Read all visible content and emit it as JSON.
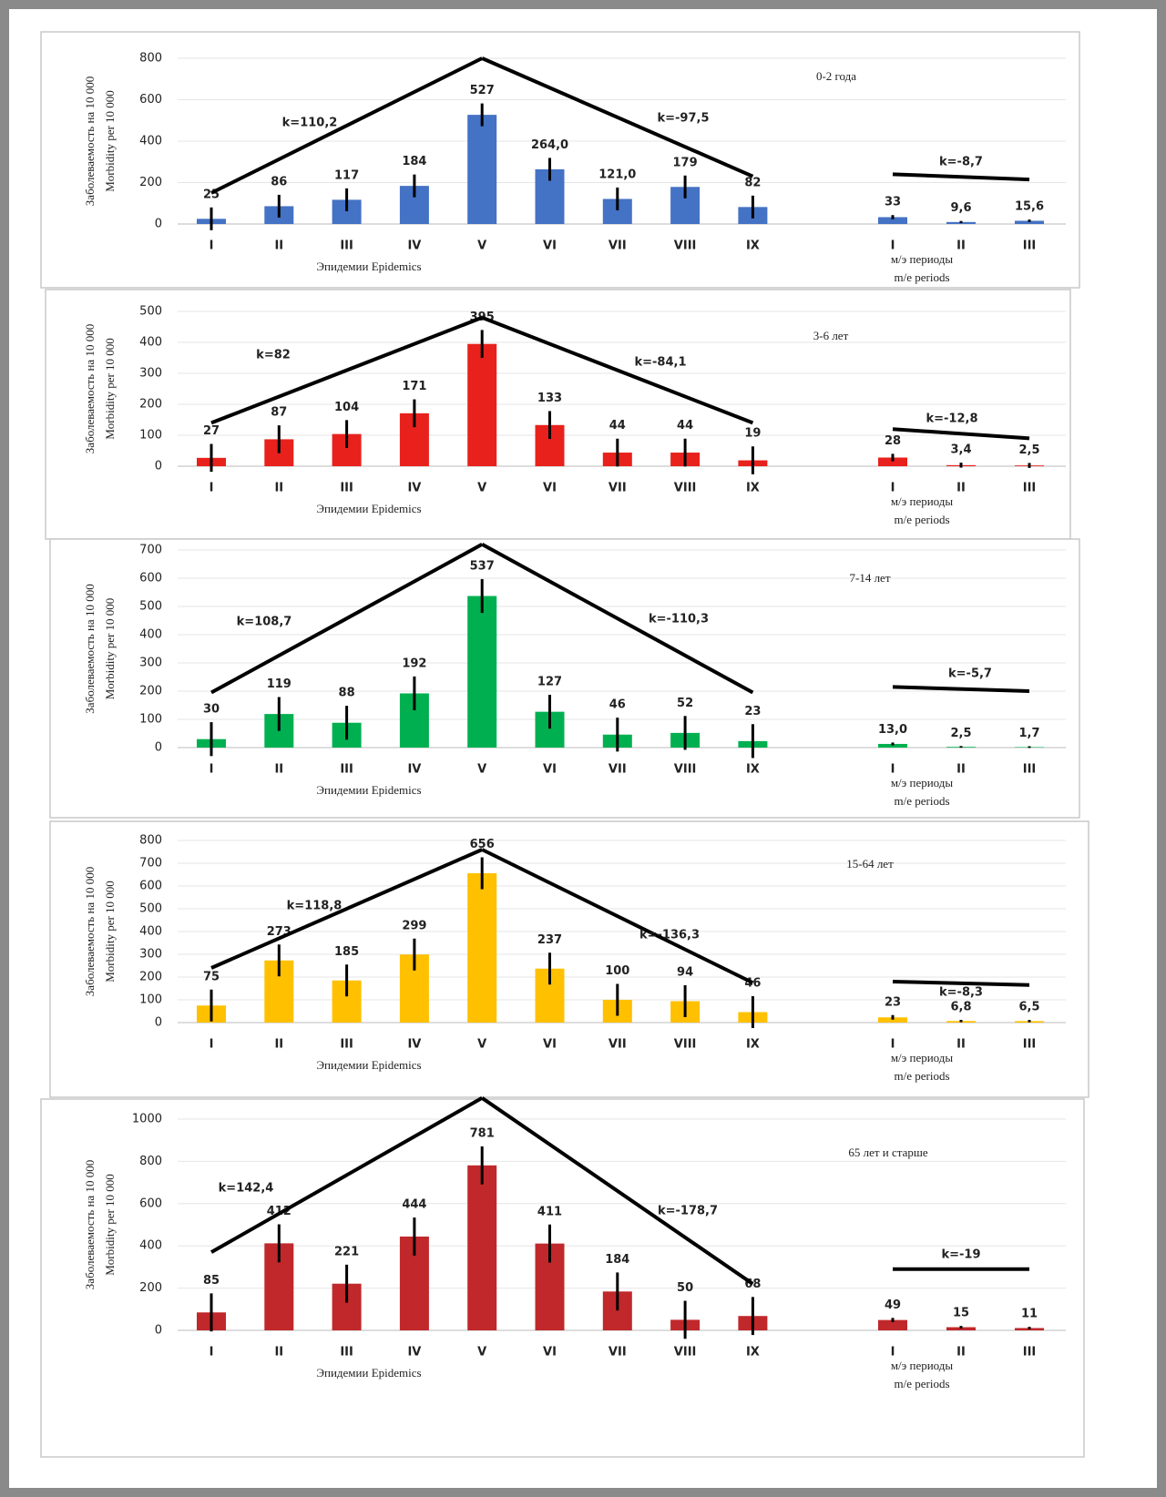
{
  "chart_data": [
    {
      "type": "bar",
      "title": "0-2 года",
      "ylabel": [
        "Заболеваемость на 10 000",
        "Morbidity per 10 000"
      ],
      "xlabel": "Эпидемии Epidemics",
      "categories": [
        "I",
        "II",
        "III",
        "IV",
        "V",
        "VI",
        "VII",
        "VIII",
        "IX"
      ],
      "values": [
        25,
        86,
        117,
        184,
        527,
        264.0,
        121.0,
        179,
        82
      ],
      "value_labels": [
        "25",
        "86",
        "117",
        "184",
        "527",
        "264,0",
        "121,0",
        "179",
        "82"
      ],
      "errors": [
        55,
        55,
        55,
        55,
        55,
        55,
        55,
        55,
        55
      ],
      "color": "#4472c4",
      "ylim": [
        0,
        800
      ],
      "yticks": [
        0,
        200,
        400,
        600,
        800
      ],
      "grid": true,
      "trends": [
        {
          "label": "k=110,2",
          "x": [
            "I",
            "V"
          ],
          "y": [
            150,
            800
          ]
        },
        {
          "label": "k=-97,5",
          "x": [
            "V",
            "IX"
          ],
          "y": [
            800,
            230
          ]
        }
      ],
      "periods": {
        "xlabel": [
          "м/э периоды",
          "m/e periods"
        ],
        "categories": [
          "I",
          "II",
          "III"
        ],
        "values": [
          33,
          9.6,
          15.6
        ],
        "value_labels": [
          "33",
          "9,6",
          "15,6"
        ],
        "errors": [
          10,
          5,
          6
        ],
        "trend": {
          "label": "k=-8,7",
          "x": [
            "I",
            "III"
          ],
          "y": [
            240,
            215
          ]
        }
      }
    },
    {
      "type": "bar",
      "title": "3-6 лет",
      "ylabel": [
        "Заболеваемость на 10 000",
        "Morbidity per 10 000"
      ],
      "xlabel": "Эпидемии Epidemics",
      "categories": [
        "I",
        "II",
        "III",
        "IV",
        "V",
        "VI",
        "VII",
        "VIII",
        "IX"
      ],
      "values": [
        27,
        87,
        104,
        171,
        395,
        133,
        44,
        44,
        19
      ],
      "value_labels": [
        "27",
        "87",
        "104",
        "171",
        "395",
        "133",
        "44",
        "44",
        "19"
      ],
      "errors": [
        45,
        45,
        45,
        45,
        45,
        45,
        45,
        45,
        45
      ],
      "color": "#e8211c",
      "ylim": [
        0,
        500
      ],
      "yticks": [
        0,
        100,
        200,
        300,
        400,
        500
      ],
      "grid": true,
      "trends": [
        {
          "label": "k=82",
          "x": [
            "I",
            "V"
          ],
          "y": [
            140,
            480
          ]
        },
        {
          "label": "k=-84,1",
          "x": [
            "V",
            "IX"
          ],
          "y": [
            480,
            140
          ]
        }
      ],
      "periods": {
        "xlabel": [
          "м/э периоды",
          "m/e periods"
        ],
        "categories": [
          "I",
          "II",
          "III"
        ],
        "values": [
          28,
          3.4,
          2.5
        ],
        "value_labels": [
          "28",
          "3,4",
          "2,5"
        ],
        "errors": [
          12,
          8,
          8
        ],
        "trend": {
          "label": "k=-12,8",
          "x": [
            "I",
            "III"
          ],
          "y": [
            120,
            90
          ]
        }
      }
    },
    {
      "type": "bar",
      "title": "7-14 лет",
      "ylabel": [
        "Заболеваемость на 10 000",
        "Morbidity per 10 000"
      ],
      "xlabel": "Эпидемии Epidemics",
      "categories": [
        "I",
        "II",
        "III",
        "IV",
        "V",
        "VI",
        "VII",
        "VIII",
        "IX"
      ],
      "values": [
        30,
        119,
        88,
        192,
        537,
        127,
        46,
        52,
        23
      ],
      "value_labels": [
        "30",
        "119",
        "88",
        "192",
        "537",
        "127",
        "46",
        "52",
        "23"
      ],
      "errors": [
        60,
        60,
        60,
        60,
        60,
        60,
        60,
        60,
        60
      ],
      "color": "#00b050",
      "ylim": [
        0,
        700
      ],
      "yticks": [
        0,
        100,
        200,
        300,
        400,
        500,
        600,
        700
      ],
      "grid": true,
      "trends": [
        {
          "label": "k=108,7",
          "x": [
            "I",
            "V"
          ],
          "y": [
            195,
            720
          ]
        },
        {
          "label": "k=-110,3",
          "x": [
            "V",
            "IX"
          ],
          "y": [
            720,
            195
          ]
        }
      ],
      "periods": {
        "xlabel": [
          "м/э периоды",
          "m/e periods"
        ],
        "categories": [
          "I",
          "II",
          "III"
        ],
        "values": [
          13.0,
          2.5,
          1.7
        ],
        "value_labels": [
          "13,0",
          "2,5",
          "1,7"
        ],
        "errors": [
          5,
          3,
          3
        ],
        "trend": {
          "label": "k=-5,7",
          "x": [
            "I",
            "III"
          ],
          "y": [
            215,
            200
          ]
        }
      }
    },
    {
      "type": "bar",
      "title": "15-64 лет",
      "ylabel": [
        "Заболеваемость на 10 000",
        "Morbidity per 10 000"
      ],
      "xlabel": "Эпидемии Epidemics",
      "categories": [
        "I",
        "II",
        "III",
        "IV",
        "V",
        "VI",
        "VII",
        "VIII",
        "IX"
      ],
      "values": [
        75,
        273,
        185,
        299,
        656,
        237,
        100,
        94,
        46
      ],
      "value_labels": [
        "75",
        "273",
        "185",
        "299",
        "656",
        "237",
        "100",
        "94",
        "46"
      ],
      "errors": [
        70,
        70,
        70,
        70,
        70,
        70,
        70,
        70,
        70
      ],
      "color": "#ffc000",
      "ylim": [
        0,
        800
      ],
      "yticks": [
        0,
        100,
        200,
        300,
        400,
        500,
        600,
        700,
        800
      ],
      "grid": true,
      "trends": [
        {
          "label": "k=118,8",
          "x": [
            "I",
            "V"
          ],
          "y": [
            240,
            760
          ]
        },
        {
          "label": "k=-136,3",
          "x": [
            "V",
            "IX"
          ],
          "y": [
            760,
            175
          ]
        }
      ],
      "periods": {
        "xlabel": [
          "м/э периоды",
          "m/e periods"
        ],
        "categories": [
          "I",
          "II",
          "III"
        ],
        "values": [
          23,
          6.8,
          6.5
        ],
        "value_labels": [
          "23",
          "6,8",
          "6,5"
        ],
        "errors": [
          10,
          5,
          5
        ],
        "trend": {
          "label": "k=-8,3",
          "x": [
            "I",
            "III"
          ],
          "y": [
            180,
            165
          ]
        }
      }
    },
    {
      "type": "bar",
      "title": "65 лет и старше",
      "ylabel": [
        "Заболеваемость на 10 000",
        "Morbidity per 10 000"
      ],
      "xlabel": "Эпидемии Epidemics",
      "categories": [
        "I",
        "II",
        "III",
        "IV",
        "V",
        "VI",
        "VII",
        "VIII",
        "IX"
      ],
      "values": [
        85,
        412,
        221,
        444,
        781,
        411,
        184,
        50,
        68
      ],
      "value_labels": [
        "85",
        "412",
        "221",
        "444",
        "781",
        "411",
        "184",
        "50",
        "68"
      ],
      "errors": [
        90,
        90,
        90,
        90,
        90,
        90,
        90,
        90,
        90
      ],
      "color": "#c0282b",
      "ylim": [
        0,
        1000
      ],
      "yticks": [
        0,
        200,
        400,
        600,
        800,
        1000
      ],
      "grid": true,
      "trends": [
        {
          "label": "k=142,4",
          "x": [
            "I",
            "V"
          ],
          "y": [
            370,
            1100
          ]
        },
        {
          "label": "k=-178,7",
          "x": [
            "V",
            "IX"
          ],
          "y": [
            1100,
            220
          ]
        }
      ],
      "periods": {
        "xlabel": [
          "м/э периоды",
          "m/e periods"
        ],
        "categories": [
          "I",
          "II",
          "III"
        ],
        "values": [
          49,
          15,
          11
        ],
        "value_labels": [
          "49",
          "15",
          "11"
        ],
        "errors": [
          10,
          6,
          6
        ],
        "trend": {
          "label": "k=-19",
          "x": [
            "I",
            "III"
          ],
          "y": [
            290,
            290
          ]
        }
      }
    }
  ]
}
